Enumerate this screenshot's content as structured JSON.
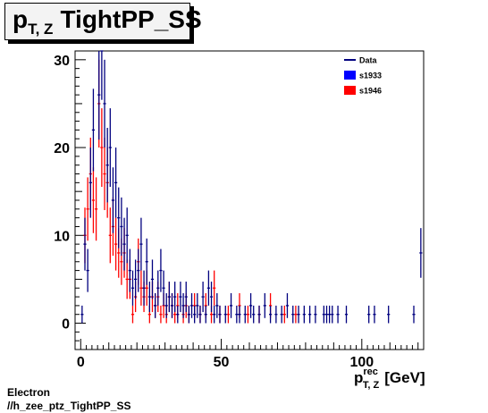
{
  "title": {
    "main": "p",
    "sub": "T, Z",
    "text": "TightPP_SS"
  },
  "footer": {
    "line1": "Electron",
    "line2": "//h_zee_ptz_TightPP_SS"
  },
  "chart_data": {
    "type": "scatter",
    "title": "p T, Z TightPP_SS",
    "xlabel": {
      "main": "p",
      "sup": "rec",
      "sub": "T, Z",
      "unit": "[GeV]"
    },
    "ylabel": "",
    "xlim": [
      -2,
      122
    ],
    "ylim": [
      -3,
      31
    ],
    "x_ticks": [
      0,
      50,
      100
    ],
    "y_ticks": [
      0,
      10,
      20,
      30
    ],
    "grid": false,
    "legend": {
      "position": "top-right",
      "entries": [
        {
          "name": "Data",
          "style": "line",
          "color": "#00007f"
        },
        {
          "name": "s1933",
          "style": "box",
          "color": "#0000ff"
        },
        {
          "name": "s1946",
          "style": "box",
          "color": "#ff0000"
        }
      ]
    },
    "series": [
      {
        "name": "Data",
        "color": "#00007f",
        "points": [
          [
            0.5,
            1
          ],
          [
            1.5,
            9
          ],
          [
            2.5,
            6
          ],
          [
            3.5,
            16
          ],
          [
            4.5,
            22
          ],
          [
            5.5,
            33
          ],
          [
            6.5,
            26
          ],
          [
            7.5,
            31
          ],
          [
            8.5,
            25
          ],
          [
            9.5,
            18
          ],
          [
            10.5,
            20
          ],
          [
            11.5,
            14
          ],
          [
            12.5,
            16
          ],
          [
            13.5,
            12
          ],
          [
            14.5,
            11
          ],
          [
            15.5,
            9
          ],
          [
            16.5,
            10
          ],
          [
            17.5,
            6
          ],
          [
            18.5,
            4
          ],
          [
            19.5,
            5
          ],
          [
            20.5,
            6
          ],
          [
            21.5,
            9
          ],
          [
            22.5,
            4
          ],
          [
            23.5,
            7
          ],
          [
            24.5,
            3
          ],
          [
            25.5,
            5
          ],
          [
            26.5,
            2
          ],
          [
            27.5,
            4
          ],
          [
            28.5,
            6
          ],
          [
            29.5,
            4
          ],
          [
            30.5,
            2
          ],
          [
            31.5,
            3
          ],
          [
            32.5,
            2
          ],
          [
            33.5,
            3
          ],
          [
            34.5,
            1
          ],
          [
            35.5,
            3
          ],
          [
            36.5,
            2
          ],
          [
            37.5,
            3
          ],
          [
            38.5,
            1
          ],
          [
            39.5,
            2
          ],
          [
            40.5,
            1
          ],
          [
            41.5,
            2
          ],
          [
            42.5,
            1
          ],
          [
            43.5,
            3
          ],
          [
            44.5,
            1
          ],
          [
            45.5,
            4
          ],
          [
            46.5,
            3
          ],
          [
            47.5,
            1
          ],
          [
            48.5,
            2
          ],
          [
            49.5,
            1
          ],
          [
            51.5,
            1
          ],
          [
            53.5,
            2
          ],
          [
            55.5,
            1
          ],
          [
            56.5,
            1
          ],
          [
            58.5,
            1
          ],
          [
            60.5,
            2
          ],
          [
            61.5,
            1
          ],
          [
            63.5,
            1
          ],
          [
            65.5,
            2
          ],
          [
            67.5,
            1
          ],
          [
            69.5,
            1
          ],
          [
            71.5,
            1
          ],
          [
            73.5,
            2
          ],
          [
            75.5,
            1
          ],
          [
            77.5,
            1
          ],
          [
            79.5,
            1
          ],
          [
            81.5,
            1
          ],
          [
            83.5,
            1
          ],
          [
            86.5,
            1
          ],
          [
            87.5,
            1
          ],
          [
            88.5,
            1
          ],
          [
            89.5,
            1
          ],
          [
            91.5,
            1
          ],
          [
            94.5,
            1
          ],
          [
            102.5,
            1
          ],
          [
            104.5,
            1
          ],
          [
            109.5,
            1
          ],
          [
            118.5,
            1
          ],
          [
            121,
            8
          ]
        ]
      },
      {
        "name": "s1946",
        "color": "#ff0000",
        "points": [
          [
            1.5,
            10
          ],
          [
            2.5,
            13
          ],
          [
            3.5,
            17
          ],
          [
            4.5,
            14
          ],
          [
            5.5,
            13
          ],
          [
            6.5,
            25
          ],
          [
            7.5,
            20
          ],
          [
            8.5,
            17
          ],
          [
            9.5,
            16
          ],
          [
            10.5,
            10
          ],
          [
            11.5,
            11
          ],
          [
            12.5,
            9
          ],
          [
            13.5,
            8
          ],
          [
            14.5,
            7
          ],
          [
            15.5,
            8
          ],
          [
            16.5,
            5
          ],
          [
            17.5,
            5
          ],
          [
            18.5,
            1
          ],
          [
            19.5,
            3
          ],
          [
            20.5,
            7
          ],
          [
            21.5,
            4
          ],
          [
            22.5,
            3
          ],
          [
            23.5,
            4
          ],
          [
            24.5,
            1
          ],
          [
            25.5,
            3
          ],
          [
            26.5,
            2
          ],
          [
            27.5,
            3
          ],
          [
            28.5,
            1
          ],
          [
            29.5,
            2
          ],
          [
            30.5,
            1
          ],
          [
            31.5,
            3
          ],
          [
            32.5,
            2
          ],
          [
            33.5,
            1
          ],
          [
            34.5,
            2
          ],
          [
            36.5,
            1
          ],
          [
            37.5,
            2
          ],
          [
            38.5,
            1
          ],
          [
            40.5,
            2
          ],
          [
            42.5,
            1
          ],
          [
            44.5,
            2
          ],
          [
            46.5,
            1
          ],
          [
            47.5,
            4
          ],
          [
            49.5,
            1
          ],
          [
            52.5,
            1
          ],
          [
            56.5,
            2
          ],
          [
            59.5,
            1
          ],
          [
            63.5,
            1
          ],
          [
            67.5,
            2
          ],
          [
            72.5,
            1
          ],
          [
            76.5,
            1
          ]
        ]
      }
    ]
  }
}
